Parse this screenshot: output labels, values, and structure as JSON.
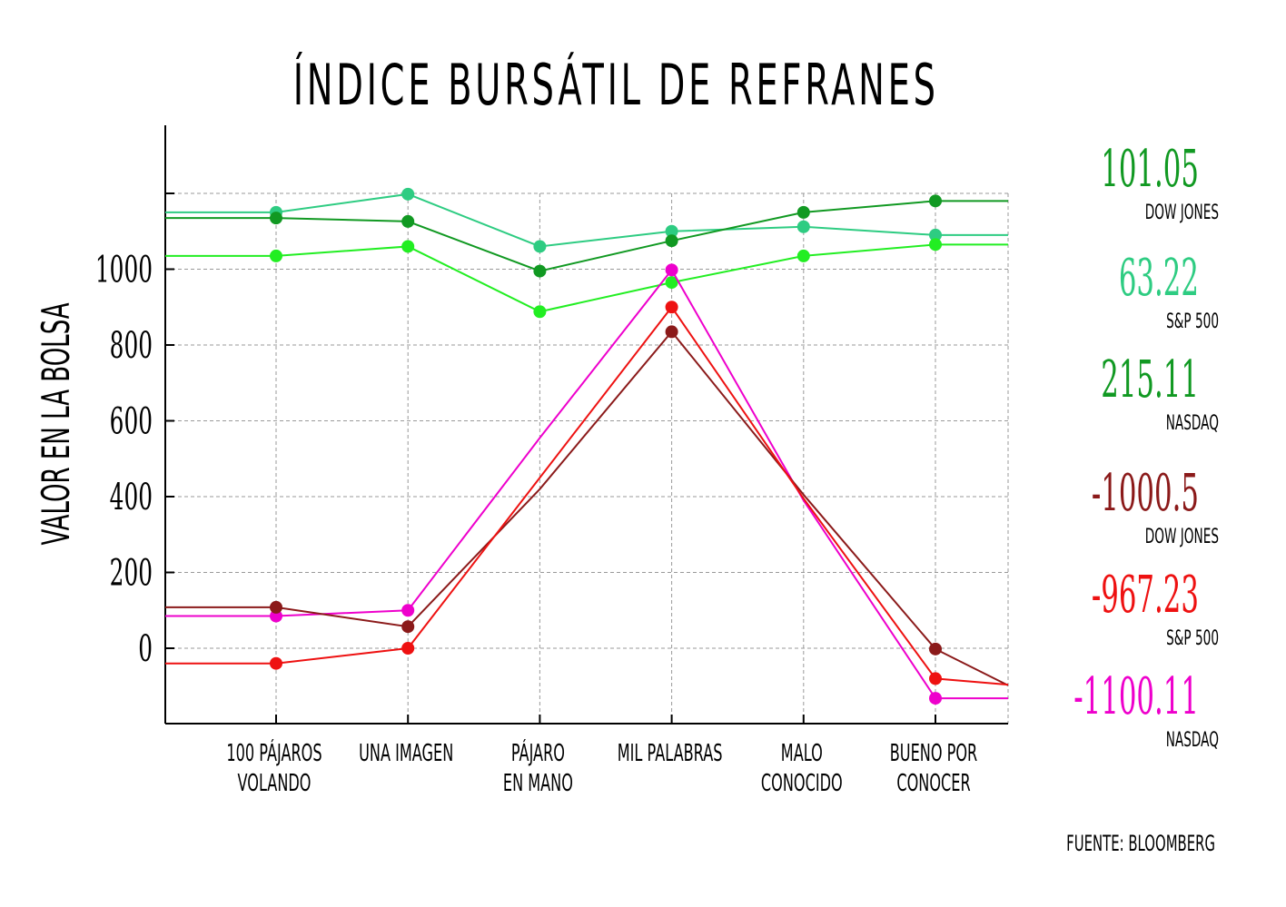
{
  "chart_data": {
    "type": "line",
    "title": "ÍNDICE BURSÁTIL DE REFRANES",
    "ylabel": "VALOR EN LA BOLSA",
    "xlabel": "",
    "ylim": [
      -200,
      1400
    ],
    "yticks": [
      0,
      200,
      400,
      600,
      800,
      1000
    ],
    "y_tick_labels": [
      "0",
      "200",
      "400",
      "600",
      "800",
      "1000"
    ],
    "grid": true,
    "categories": [
      [
        "100 PÁJAROS",
        "VOLANDO"
      ],
      [
        "UNA IMAGEN"
      ],
      [
        "PÁJARO",
        "EN MANO"
      ],
      [
        "MIL PALABRAS"
      ],
      [
        "MALO",
        "CONOCIDO"
      ],
      [
        "BUENO POR",
        "CONOCER"
      ]
    ],
    "series": [
      {
        "color": "#2ecc82",
        "values": [
          1150,
          1198,
          1060,
          1100,
          1112,
          1090
        ]
      },
      {
        "color": "#119922",
        "values": [
          1135,
          1126,
          995,
          1075,
          1150,
          1180
        ]
      },
      {
        "color": "#22ee22",
        "values": [
          1035,
          1060,
          888,
          965,
          1035,
          1065
        ]
      },
      {
        "color": "#ee00cc",
        "values": [
          85,
          100,
          555,
          998,
          390,
          -132
        ]
      },
      {
        "color": "#8b1a1a",
        "values": [
          108,
          57,
          420,
          835,
          405,
          -2
        ]
      },
      {
        "color": "#ee1111",
        "values": [
          -40,
          0,
          450,
          900,
          395,
          -80
        ]
      }
    ],
    "x_offsets": [
      -0.8,
      0,
      1,
      2,
      3,
      4,
      5,
      5.6
    ]
  },
  "index_panel": [
    {
      "value": "101.05",
      "name": "DOW JONES",
      "color": "#119922"
    },
    {
      "value": "63.22",
      "name": "S&P 500",
      "color": "#2ecc82"
    },
    {
      "value": "215.11",
      "name": "NASDAQ",
      "color": "#119922"
    },
    {
      "value": "-1000.5",
      "name": "DOW JONES",
      "color": "#8b1a1a"
    },
    {
      "value": "-967.23",
      "name": "S&P 500",
      "color": "#ee1111"
    },
    {
      "value": "-1100.11",
      "name": "NASDAQ",
      "color": "#ee00cc"
    }
  ],
  "source": "FUENTE: BLOOMBERG"
}
